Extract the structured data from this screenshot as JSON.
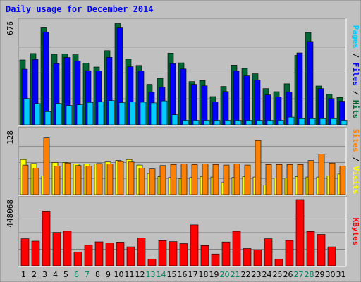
{
  "chart_data": {
    "type": "bar",
    "title": "Daily usage for December 2014",
    "categories": [
      "1",
      "2",
      "3",
      "4",
      "5",
      "6",
      "7",
      "8",
      "9",
      "10",
      "11",
      "12",
      "13",
      "14",
      "15",
      "16",
      "17",
      "18",
      "19",
      "20",
      "21",
      "22",
      "23",
      "24",
      "25",
      "26",
      "27",
      "28",
      "29",
      "30",
      "31"
    ],
    "weekend_days": [
      "6",
      "7",
      "13",
      "14",
      "20",
      "21",
      "27",
      "28"
    ],
    "panels": [
      {
        "id": "hits_panel",
        "ymax": 676,
        "ymax_label": "676",
        "legend": [
          "Pages",
          "Files",
          "Hits"
        ],
        "series": [
          {
            "name": "Hits",
            "color": "#006633",
            "values": [
              423,
              465,
              633,
              460,
              463,
              457,
              403,
              377,
              484,
              660,
              428,
              387,
              264,
              303,
              467,
              404,
              282,
              289,
              184,
              250,
              389,
              368,
              333,
              236,
              216,
              267,
              453,
              602,
              253,
              198,
              178
            ]
          },
          {
            "name": "Files",
            "color": "#0000FF",
            "values": [
              363,
              426,
              604,
              399,
              439,
              415,
              353,
              352,
              440,
              632,
              379,
              351,
              212,
              244,
              399,
              364,
              264,
              254,
              149,
              217,
              350,
              319,
              291,
              195,
              181,
              213,
              469,
              543,
              236,
              171,
              154
            ]
          },
          {
            "name": "Pages",
            "color": "#00CCFF",
            "values": [
              172,
              139,
              86,
              140,
              126,
              130,
              146,
              151,
              158,
              145,
              149,
              147,
              143,
              156,
              66,
              30,
              30,
              30,
              30,
              30,
              30,
              30,
              30,
              30,
              30,
              50,
              40,
              40,
              40,
              40,
              30
            ]
          }
        ]
      },
      {
        "id": "visits_panel",
        "ymax": 128,
        "ymax_label": "128",
        "legend": [
          "Sites",
          "Visits"
        ],
        "series": [
          {
            "name": "Visits",
            "color": "#FFFF00",
            "values": [
              70,
              62,
              37,
              64,
              64,
              61,
              61,
              61,
              65,
              68,
              70,
              59,
              42,
              36,
              34,
              32,
              34,
              36,
              35,
              24,
              34,
              36,
              35,
              19,
              33,
              33,
              36,
              35,
              35,
              37,
              41
            ]
          },
          {
            "name": "Sites",
            "color": "#FF8000",
            "values": [
              59,
              53,
              113,
              57,
              63,
              58,
              57,
              62,
              61,
              66,
              65,
              53,
              51,
              58,
              60,
              61,
              60,
              61,
              60,
              59,
              61,
              59,
              108,
              60,
              60,
              60,
              60,
              68,
              81,
              63,
              57
            ]
          }
        ]
      },
      {
        "id": "kbytes_panel",
        "ymax": 448068,
        "ymax_label": "448068",
        "legend": [
          "KBytes"
        ],
        "series": [
          {
            "name": "KBytes",
            "color": "#FF0000",
            "values": [
              183000,
              167000,
              370000,
              226000,
              234000,
              92000,
              139000,
              162000,
              154000,
              160000,
              128000,
              189000,
              46000,
              170000,
              164000,
              150000,
              277000,
              137000,
              80000,
              161000,
              233000,
              117000,
              108000,
              183000,
              44000,
              171000,
              448068,
              232000,
              212000,
              128000,
              0
            ]
          }
        ]
      }
    ]
  },
  "colors": {
    "frame_background": "#C0C0C0",
    "plot_background": "#C0C0C0",
    "title_color": "#0000FF",
    "weekday_label_color": "#000000",
    "weekend_label_color": "#00805C"
  }
}
